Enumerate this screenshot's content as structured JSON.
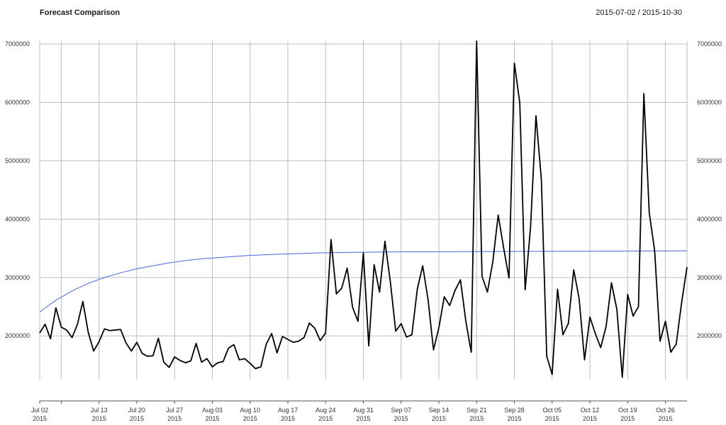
{
  "chart_data": {
    "type": "line",
    "title": "Forecast Comparison",
    "range_label": "2015-07-02 / 2015-10-30",
    "xlabel": "",
    "ylabel": "",
    "x_start": "2015-07-02",
    "x_end": "2015-10-30",
    "ylim": [
      1250000,
      7050000
    ],
    "y_ticks": [
      2000000,
      3000000,
      4000000,
      5000000,
      6000000,
      7000000
    ],
    "y_tick_labels": [
      "2000000",
      "3000000",
      "4000000",
      "5000000",
      "6000000",
      "7000000"
    ],
    "x_ticks": [
      {
        "date": "2015-07-02",
        "label1": "Jul 02",
        "label2": "2015"
      },
      {
        "date": "2015-07-13",
        "label1": "Jul 13",
        "label2": "2015"
      },
      {
        "date": "2015-07-20",
        "label1": "Jul 20",
        "label2": "2015"
      },
      {
        "date": "2015-07-27",
        "label1": "Jul 27",
        "label2": "2015"
      },
      {
        "date": "2015-08-03",
        "label1": "Aug 03",
        "label2": "2015"
      },
      {
        "date": "2015-08-10",
        "label1": "Aug 10",
        "label2": "2015"
      },
      {
        "date": "2015-08-17",
        "label1": "Aug 17",
        "label2": "2015"
      },
      {
        "date": "2015-08-24",
        "label1": "Aug 24",
        "label2": "2015"
      },
      {
        "date": "2015-08-31",
        "label1": "Aug 31",
        "label2": "2015"
      },
      {
        "date": "2015-09-07",
        "label1": "Sep 07",
        "label2": "2015"
      },
      {
        "date": "2015-09-14",
        "label1": "Sep 14",
        "label2": "2015"
      },
      {
        "date": "2015-09-21",
        "label1": "Sep 21",
        "label2": "2015"
      },
      {
        "date": "2015-09-28",
        "label1": "Sep 28",
        "label2": "2015"
      },
      {
        "date": "2015-10-05",
        "label1": "Oct 05",
        "label2": "2015"
      },
      {
        "date": "2015-10-12",
        "label1": "Oct 12",
        "label2": "2015"
      },
      {
        "date": "2015-10-19",
        "label1": "Oct 19",
        "label2": "2015"
      },
      {
        "date": "2015-10-26",
        "label1": "Oct 26",
        "label2": "2015"
      }
    ],
    "extra_gridlines": [
      "2015-07-06"
    ],
    "grid": true,
    "series": [
      {
        "color": "#000000",
        "x": [
          "2015-07-02",
          "2015-07-03",
          "2015-07-04",
          "2015-07-05",
          "2015-07-06",
          "2015-07-07",
          "2015-07-08",
          "2015-07-09",
          "2015-07-10",
          "2015-07-11",
          "2015-07-12",
          "2015-07-13",
          "2015-07-14",
          "2015-07-15",
          "2015-07-16",
          "2015-07-17",
          "2015-07-18",
          "2015-07-19",
          "2015-07-20",
          "2015-07-21",
          "2015-07-22",
          "2015-07-23",
          "2015-07-24",
          "2015-07-25",
          "2015-07-26",
          "2015-07-27",
          "2015-07-28",
          "2015-07-29",
          "2015-07-30",
          "2015-07-31",
          "2015-08-01",
          "2015-08-02",
          "2015-08-03",
          "2015-08-04",
          "2015-08-05",
          "2015-08-06",
          "2015-08-07",
          "2015-08-08",
          "2015-08-09",
          "2015-08-10",
          "2015-08-11",
          "2015-08-12",
          "2015-08-13",
          "2015-08-14",
          "2015-08-15",
          "2015-08-16",
          "2015-08-17",
          "2015-08-18",
          "2015-08-19",
          "2015-08-20",
          "2015-08-21",
          "2015-08-22",
          "2015-08-23",
          "2015-08-24",
          "2015-08-25",
          "2015-08-26",
          "2015-08-27",
          "2015-08-28",
          "2015-08-29",
          "2015-08-30",
          "2015-08-31",
          "2015-09-01",
          "2015-09-02",
          "2015-09-03",
          "2015-09-04",
          "2015-09-05",
          "2015-09-06",
          "2015-09-07",
          "2015-09-08",
          "2015-09-09",
          "2015-09-10",
          "2015-09-11",
          "2015-09-12",
          "2015-09-13",
          "2015-09-14",
          "2015-09-15",
          "2015-09-16",
          "2015-09-17",
          "2015-09-18",
          "2015-09-19",
          "2015-09-20",
          "2015-09-21",
          "2015-09-22",
          "2015-09-23",
          "2015-09-24",
          "2015-09-25",
          "2015-09-26",
          "2015-09-27",
          "2015-09-28",
          "2015-09-29",
          "2015-09-30",
          "2015-10-01",
          "2015-10-02",
          "2015-10-03",
          "2015-10-04",
          "2015-10-05",
          "2015-10-06",
          "2015-10-07",
          "2015-10-08",
          "2015-10-09",
          "2015-10-10",
          "2015-10-11",
          "2015-10-12",
          "2015-10-13",
          "2015-10-14",
          "2015-10-15",
          "2015-10-16",
          "2015-10-17",
          "2015-10-18",
          "2015-10-19",
          "2015-10-20",
          "2015-10-21",
          "2015-10-22",
          "2015-10-23",
          "2015-10-24",
          "2015-10-25",
          "2015-10-26",
          "2015-10-27",
          "2015-10-28",
          "2015-10-29",
          "2015-10-30"
        ],
        "y": [
          2050000,
          2200000,
          1950000,
          2480000,
          2150000,
          2100000,
          1970000,
          2200000,
          2590000,
          2060000,
          1740000,
          1900000,
          2120000,
          2090000,
          2100000,
          2110000,
          1880000,
          1740000,
          1890000,
          1700000,
          1650000,
          1660000,
          1960000,
          1550000,
          1460000,
          1640000,
          1580000,
          1540000,
          1570000,
          1870000,
          1550000,
          1610000,
          1470000,
          1540000,
          1560000,
          1790000,
          1850000,
          1590000,
          1610000,
          1530000,
          1440000,
          1470000,
          1860000,
          2040000,
          1710000,
          1990000,
          1940000,
          1890000,
          1910000,
          1970000,
          2220000,
          2130000,
          1920000,
          2050000,
          3650000,
          2720000,
          2820000,
          3160000,
          2490000,
          2250000,
          3420000,
          1830000,
          3220000,
          2750000,
          3620000,
          2930000,
          2080000,
          2210000,
          1980000,
          2020000,
          2800000,
          3200000,
          2620000,
          1760000,
          2140000,
          2670000,
          2520000,
          2780000,
          2960000,
          2250000,
          1720000,
          7050000,
          3020000,
          2750000,
          3270000,
          4070000,
          3510000,
          2990000,
          6670000,
          5990000,
          2790000,
          3870000,
          5770000,
          4680000,
          1650000,
          1340000,
          2800000,
          2020000,
          2210000,
          3130000,
          2640000,
          1590000,
          2320000,
          2040000,
          1800000,
          2160000,
          2910000,
          2450000,
          1290000,
          2710000,
          2340000,
          2500000,
          6150000,
          4110000,
          3460000,
          1910000,
          2250000,
          1720000,
          1860000,
          2570000,
          3180000
        ]
      },
      {
        "color": "#4a66d9",
        "x": [
          "2015-07-02",
          "2015-07-05",
          "2015-07-08",
          "2015-07-11",
          "2015-07-14",
          "2015-07-17",
          "2015-07-20",
          "2015-07-23",
          "2015-07-26",
          "2015-07-29",
          "2015-08-01",
          "2015-08-04",
          "2015-08-07",
          "2015-08-10",
          "2015-08-13",
          "2015-08-16",
          "2015-08-19",
          "2015-08-22",
          "2015-08-25",
          "2015-08-28",
          "2015-08-31",
          "2015-09-03",
          "2015-09-06",
          "2015-09-09",
          "2015-09-12",
          "2015-09-15",
          "2015-09-18",
          "2015-09-21",
          "2015-09-24",
          "2015-09-27",
          "2015-09-30",
          "2015-10-03",
          "2015-10-06",
          "2015-10-09",
          "2015-10-12",
          "2015-10-15",
          "2015-10-18",
          "2015-10-21",
          "2015-10-24",
          "2015-10-27",
          "2015-10-30"
        ],
        "y": [
          2410000,
          2610000,
          2770000,
          2900000,
          3000000,
          3080000,
          3150000,
          3200000,
          3250000,
          3290000,
          3320000,
          3340000,
          3360000,
          3380000,
          3390000,
          3400000,
          3410000,
          3420000,
          3425000,
          3430000,
          3433000,
          3436000,
          3438000,
          3440000,
          3441000,
          3442000,
          3443000,
          3444000,
          3445000,
          3446000,
          3447000,
          3448000,
          3449000,
          3450000,
          3451000,
          3452000,
          3453000,
          3454000,
          3455000,
          3456000,
          3457000
        ]
      }
    ]
  }
}
